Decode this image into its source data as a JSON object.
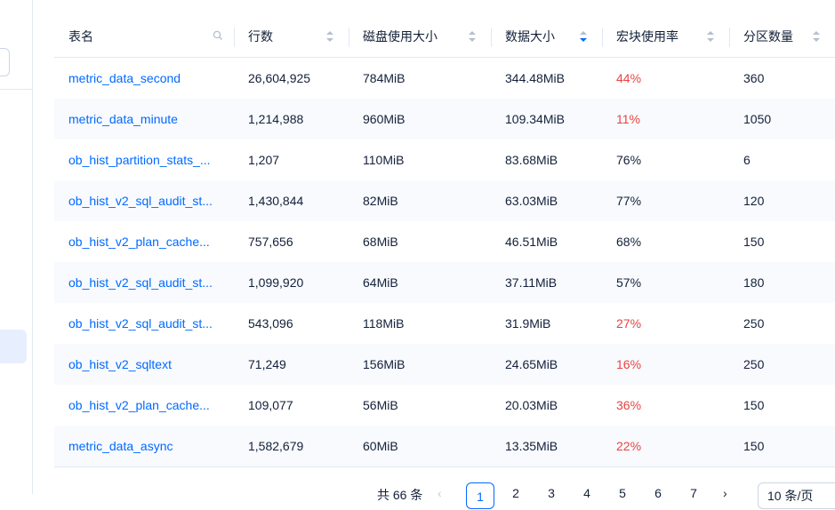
{
  "table": {
    "columns": [
      "表名",
      "行数",
      "磁盘使用大小",
      "数据大小",
      "宏块使用率",
      "分区数量"
    ],
    "rows": [
      {
        "name": "metric_data_second",
        "rows": "26,604,925",
        "disk": "784MiB",
        "data": "344.48MiB",
        "usage": "44%",
        "usage_warn": true,
        "partitions": "360"
      },
      {
        "name": "metric_data_minute",
        "rows": "1,214,988",
        "disk": "960MiB",
        "data": "109.34MiB",
        "usage": "11%",
        "usage_warn": true,
        "partitions": "1050"
      },
      {
        "name": "ob_hist_partition_stats_...",
        "rows": "1,207",
        "disk": "110MiB",
        "data": "83.68MiB",
        "usage": "76%",
        "usage_warn": false,
        "partitions": "6"
      },
      {
        "name": "ob_hist_v2_sql_audit_st...",
        "rows": "1,430,844",
        "disk": "82MiB",
        "data": "63.03MiB",
        "usage": "77%",
        "usage_warn": false,
        "partitions": "120"
      },
      {
        "name": "ob_hist_v2_plan_cache...",
        "rows": "757,656",
        "disk": "68MiB",
        "data": "46.51MiB",
        "usage": "68%",
        "usage_warn": false,
        "partitions": "150"
      },
      {
        "name": "ob_hist_v2_sql_audit_st...",
        "rows": "1,099,920",
        "disk": "64MiB",
        "data": "37.11MiB",
        "usage": "57%",
        "usage_warn": false,
        "partitions": "180"
      },
      {
        "name": "ob_hist_v2_sql_audit_st...",
        "rows": "543,096",
        "disk": "118MiB",
        "data": "31.9MiB",
        "usage": "27%",
        "usage_warn": true,
        "partitions": "250"
      },
      {
        "name": "ob_hist_v2_sqltext",
        "rows": "71,249",
        "disk": "156MiB",
        "data": "24.65MiB",
        "usage": "16%",
        "usage_warn": true,
        "partitions": "250"
      },
      {
        "name": "ob_hist_v2_plan_cache...",
        "rows": "109,077",
        "disk": "56MiB",
        "data": "20.03MiB",
        "usage": "36%",
        "usage_warn": true,
        "partitions": "150"
      },
      {
        "name": "metric_data_async",
        "rows": "1,582,679",
        "disk": "60MiB",
        "data": "13.35MiB",
        "usage": "22%",
        "usage_warn": true,
        "partitions": "150"
      }
    ],
    "sort_column": "数据大小",
    "sort_direction": "descending"
  },
  "pagination": {
    "total": "共 66 条",
    "pages": [
      "1",
      "2",
      "3",
      "4",
      "5",
      "6",
      "7"
    ],
    "current": "1",
    "prev_icon": "chevron-left-icon",
    "next_icon": "chevron-right-icon",
    "page_size": "10 条/页"
  },
  "colors": {
    "link": "#006aff",
    "warn": "#eb4242",
    "text": "#132039",
    "sort_active": "#006aff",
    "sort_inactive": "#b6bfcf"
  }
}
